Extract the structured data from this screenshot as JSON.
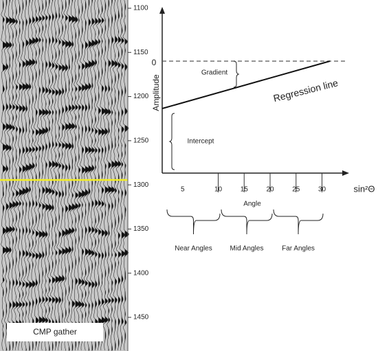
{
  "gather": {
    "label": "CMP gather",
    "time_ticks": [
      1100,
      1150,
      1200,
      1250,
      1300,
      1350,
      1400,
      1450
    ]
  },
  "plot": {
    "y_axis_label": "Amplitude",
    "zero_label": "0",
    "gradient_label": "Gradient",
    "regression_label": "Regression line",
    "intercept_label": "Intercept",
    "x_axis": {
      "ticks": [
        5,
        10,
        15,
        20,
        25,
        30
      ],
      "variable": "sin²Θ",
      "title": "Angle"
    },
    "angle_groups": [
      "Near Angles",
      "Mid Angles",
      "Far Angles"
    ]
  }
}
